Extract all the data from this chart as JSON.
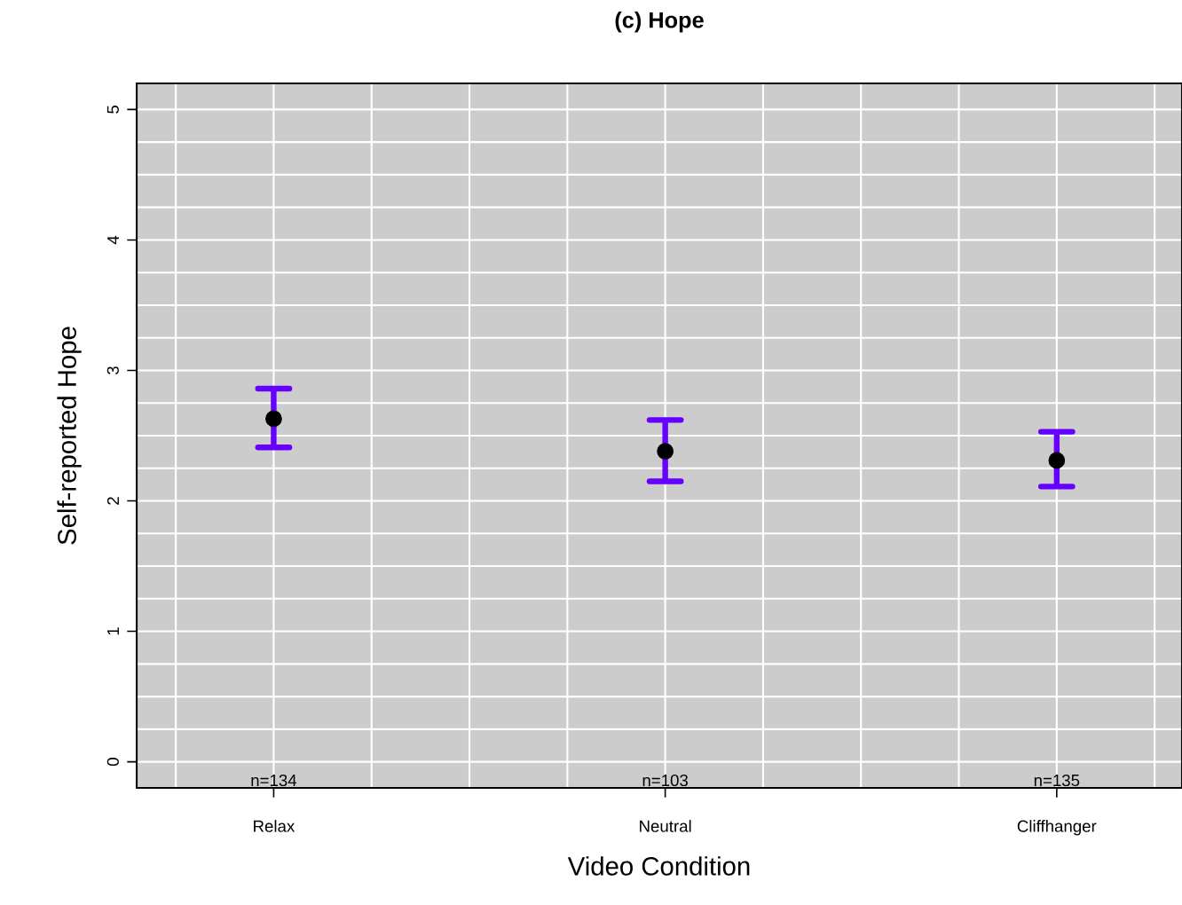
{
  "chart_data": {
    "type": "scatter",
    "title": "(c) Hope",
    "xlabel": "Video Condition",
    "ylabel": "Self-reported Hope",
    "categories": [
      "Relax",
      "Neutral",
      "Cliffhanger"
    ],
    "series": [
      {
        "color": "#000000",
        "values": [
          2.63,
          2.38,
          2.31
        ],
        "errors": [
          [
            2.41,
            2.86
          ],
          [
            2.15,
            2.62
          ],
          [
            2.11,
            2.53
          ]
        ]
      }
    ],
    "ylim": [
      -0.2,
      5.2
    ],
    "yticks": [
      0,
      1,
      2,
      3,
      4,
      5
    ],
    "grid": true,
    "annotations": [
      "n=134",
      "n=103",
      "n=135"
    ]
  }
}
